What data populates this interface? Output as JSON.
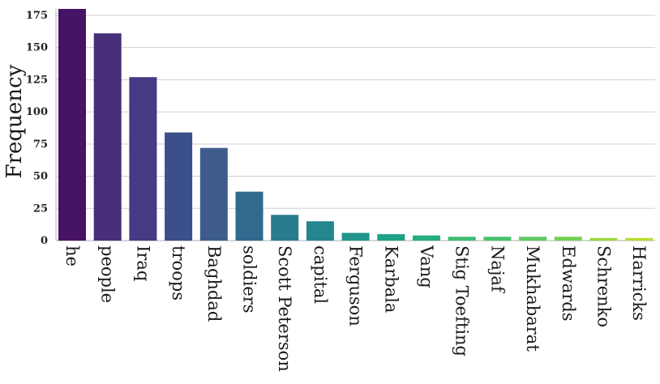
{
  "chart_data": {
    "type": "bar",
    "title": "",
    "xlabel": "",
    "ylabel": "Frequency",
    "ylim": [
      0,
      180
    ],
    "yticks": [
      0,
      25,
      50,
      75,
      100,
      125,
      150,
      175
    ],
    "grid": "horizontal",
    "categories": [
      "he",
      "people",
      "Iraq",
      "troops",
      "Baghdad",
      "soldiers",
      "Scott Peterson",
      "capital",
      "Ferguson",
      "Karbala",
      "Vang",
      "Stig Toefting",
      "Najaf",
      "Mukhabarat",
      "Edwards",
      "Schrenko",
      "Harricks"
    ],
    "values": [
      180,
      161,
      127,
      84,
      72,
      38,
      20,
      15,
      6,
      5,
      4,
      3,
      3,
      3,
      3,
      2,
      2
    ],
    "colors": [
      "#471365",
      "#482f7a",
      "#443b84",
      "#3b4f8a",
      "#3e5c8b",
      "#306a8e",
      "#297b8e",
      "#24868e",
      "#1f958b",
      "#1fa187",
      "#27ad81",
      "#3fbc73",
      "#4ac16d",
      "#5ec962",
      "#75d054",
      "#9cd93b",
      "#b8de29"
    ]
  }
}
